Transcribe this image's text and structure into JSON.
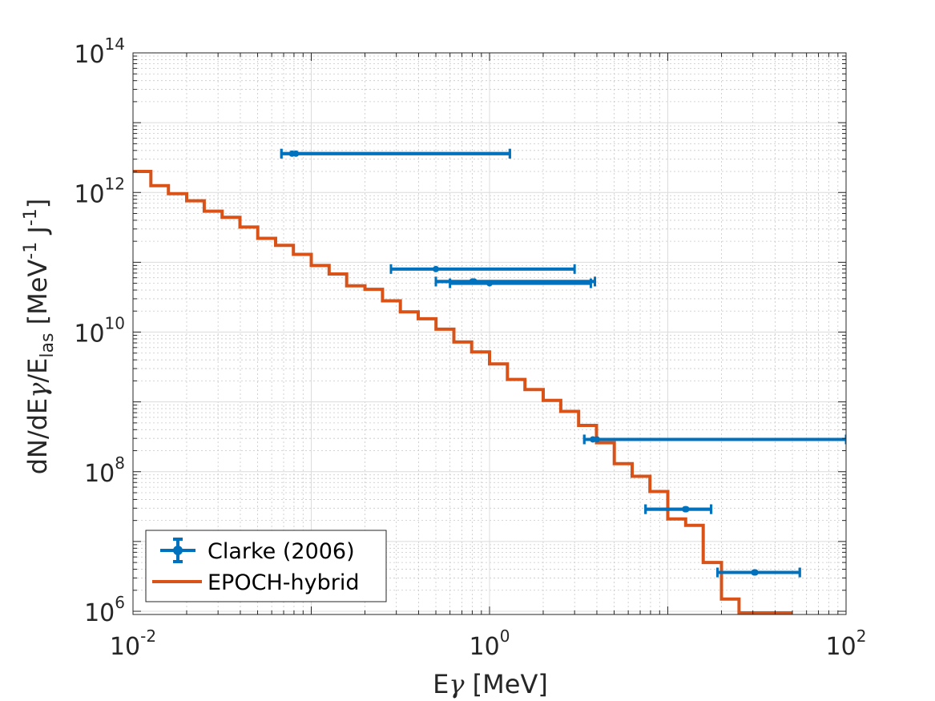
{
  "chart_data": {
    "type": "scatter",
    "title": "",
    "xlabel": {
      "main": "E",
      "greek": "γ",
      "suffix": " [MeV]"
    },
    "ylabel": {
      "p1": "dN/dE",
      "greek": "γ",
      "p2": "/E",
      "sub": "las",
      "p3": " [MeV",
      "sup1": "-1",
      "p4": " J",
      "sup2": "-1",
      "p5": "]"
    },
    "x_scale": "log",
    "y_scale": "log",
    "xlim": [
      0.01,
      100
    ],
    "ylim": [
      900000,
      100000000000000
    ],
    "grid": true,
    "minor_grid": true,
    "legend_position": "bottom-left",
    "x_ticks": [
      {
        "value": 0.01,
        "base": "10",
        "exp": "-2"
      },
      {
        "value": 1,
        "base": "10",
        "exp": "0"
      },
      {
        "value": 100,
        "base": "10",
        "exp": "2"
      }
    ],
    "y_ticks": [
      {
        "value": 1000000,
        "base": "10",
        "exp": "6"
      },
      {
        "value": 100000000,
        "base": "10",
        "exp": "8"
      },
      {
        "value": 10000000000,
        "base": "10",
        "exp": "10"
      },
      {
        "value": 1000000000000,
        "base": "10",
        "exp": "12"
      },
      {
        "value": 100000000000000,
        "base": "10",
        "exp": "14"
      }
    ],
    "series": [
      {
        "name": "Clarke (2006)",
        "kind": "errorbar",
        "color": "#0072BD",
        "points": [
          {
            "x": 0.078,
            "y": 3600000000000.0,
            "xlow": 0.068,
            "xhigh": 1.3
          },
          {
            "x": 0.082,
            "y": 3600000000000.0,
            "xlow": 0.068,
            "xhigh": 1.3
          },
          {
            "x": 0.5,
            "y": 80000000000.0,
            "xlow": 0.28,
            "xhigh": 3.0
          },
          {
            "x": 0.8,
            "y": 53000000000.0,
            "xlow": 0.5,
            "xhigh": 3.9
          },
          {
            "x": 0.82,
            "y": 53000000000.0,
            "xlow": 0.5,
            "xhigh": 3.9
          },
          {
            "x": 1.0,
            "y": 50000000000.0,
            "xlow": 0.6,
            "xhigh": 3.7
          },
          {
            "x": 3.8,
            "y": 290000000.0,
            "xlow": 3.4,
            "xhigh": 100
          },
          {
            "x": 4.0,
            "y": 290000000.0,
            "xlow": 3.4,
            "xhigh": 100
          },
          {
            "x": 12.5,
            "y": 29000000.0,
            "xlow": 7.5,
            "xhigh": 17.5
          },
          {
            "x": 12.7,
            "y": 29000000.0,
            "xlow": 7.5,
            "xhigh": 17.5
          },
          {
            "x": 30.5,
            "y": 3600000.0,
            "xlow": 19,
            "xhigh": 55
          },
          {
            "x": 31,
            "y": 3600000.0,
            "xlow": 19,
            "xhigh": 55
          }
        ]
      },
      {
        "name": "EPOCH-hybrid",
        "kind": "stairs",
        "color": "#D95319",
        "edges": [
          0.01,
          0.0126,
          0.0158,
          0.02,
          0.0251,
          0.0316,
          0.0398,
          0.0501,
          0.0631,
          0.0794,
          0.1,
          0.126,
          0.158,
          0.2,
          0.251,
          0.316,
          0.398,
          0.501,
          0.631,
          0.794,
          1.0,
          1.26,
          1.58,
          2.0,
          2.51,
          3.16,
          3.98,
          5.01,
          6.31,
          7.94,
          10.0,
          12.6,
          15.8,
          20.0,
          25.1,
          31.6,
          39.8,
          50.1
        ],
        "values": [
          2000000000000.0,
          1250000000000.0,
          960000000000.0,
          760000000000.0,
          540000000000.0,
          440000000000.0,
          320000000000.0,
          220000000000.0,
          175000000000.0,
          130000000000.0,
          90000000000.0,
          68000000000.0,
          46000000000.0,
          41000000000.0,
          28000000000.0,
          19500000000.0,
          15500000000.0,
          11000000000.0,
          7200000000.0,
          5200000000.0,
          3500000000.0,
          2100000000.0,
          1500000000.0,
          1050000000.0,
          730000000.0,
          460000000.0,
          260000000.0,
          130000000.0,
          86000000.0,
          52000000.0,
          21000000.0,
          17000000.0,
          5000000.0,
          1500000.0,
          950000.0,
          950000.0,
          950000.0
        ]
      }
    ]
  }
}
